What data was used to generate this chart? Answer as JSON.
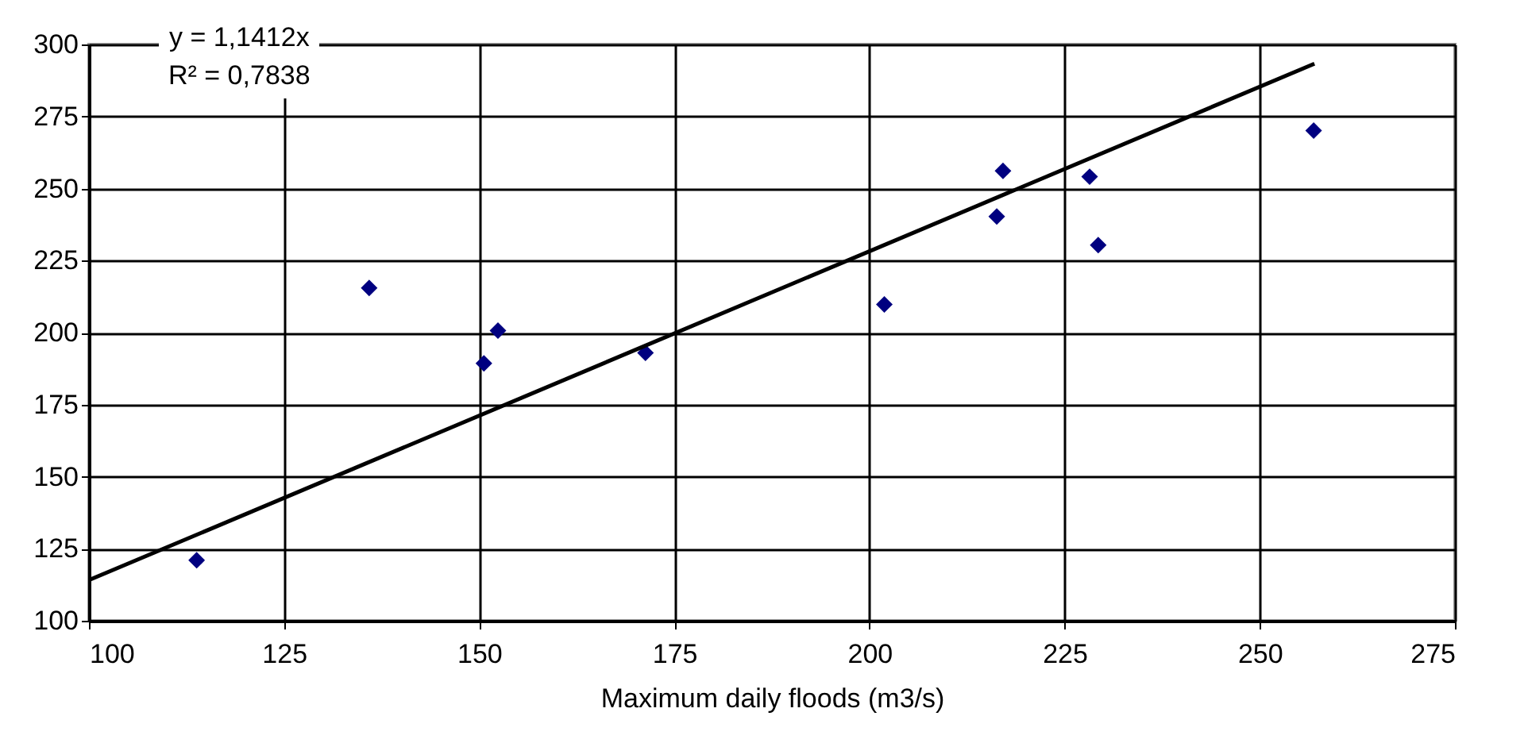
{
  "chart_data": {
    "type": "scatter",
    "xlabel": "Maximum  daily floods (m3/s)",
    "xlim": [
      100,
      275
    ],
    "xticks": [
      100,
      125,
      150,
      175,
      200,
      225,
      250,
      275
    ],
    "ylim": [
      100,
      300
    ],
    "yticks": [
      100,
      125,
      150,
      175,
      200,
      225,
      250,
      275,
      300
    ],
    "grid": true,
    "marker": "diamond",
    "annotations": [
      "y = 1,1412x",
      "R² = 0,7838"
    ],
    "series": [
      {
        "color": "#000080",
        "x": [
          113.8,
          135.9,
          150.6,
          152.4,
          171.3,
          201.9,
          216.3,
          217.1,
          228.2,
          229.3,
          256.9
        ],
        "values": [
          121,
          215.5,
          189.3,
          200.7,
          193,
          209.8,
          240.3,
          256.1,
          254.1,
          230.4,
          270.1
        ]
      },
      {
        "type": "line",
        "color": "#000000",
        "x": [
          100,
          257
        ],
        "values": [
          114.1,
          293.3
        ],
        "line_style": "solid",
        "marker": "none"
      }
    ]
  }
}
